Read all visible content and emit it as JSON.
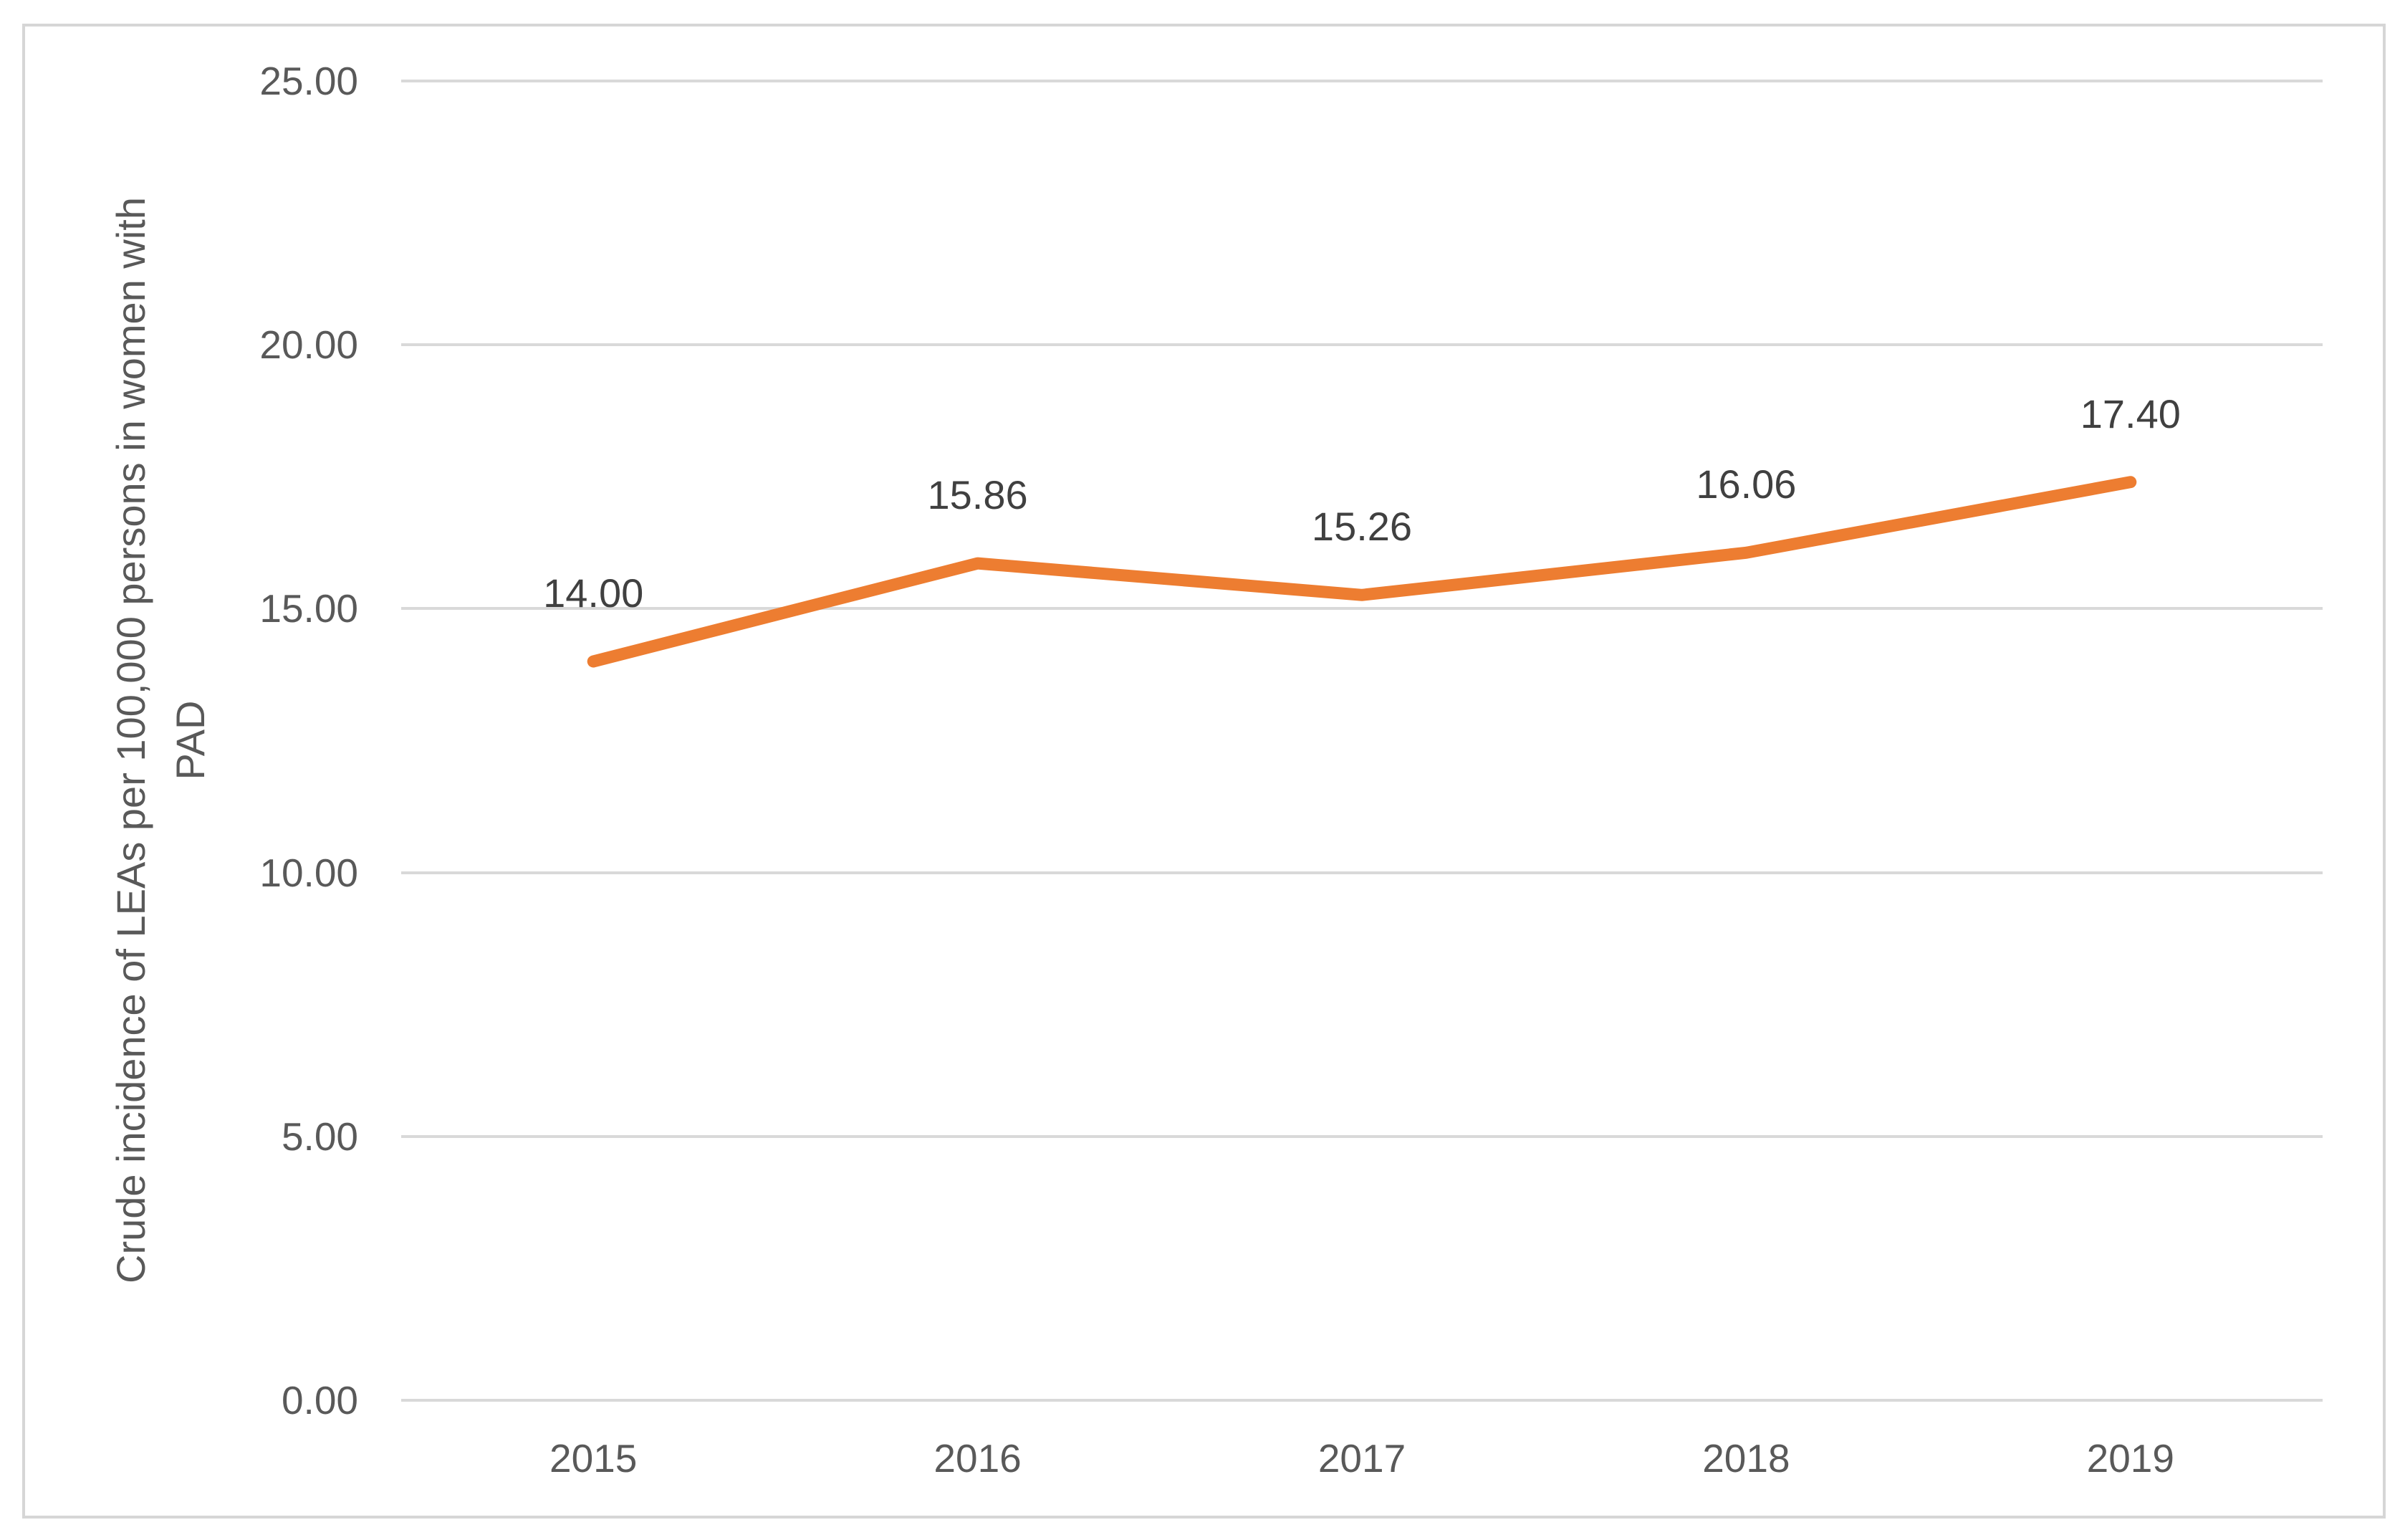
{
  "chart_data": {
    "type": "line",
    "title": "",
    "ylabel_line1": "Crude incidence of LEAs per 100,000 persons in women with",
    "ylabel_line2": "PAD",
    "xlabel": "",
    "categories": [
      "2015",
      "2016",
      "2017",
      "2018",
      "2019"
    ],
    "series": [
      {
        "name": "Crude incidence of LEAs per 100,000 persons in women with PAD",
        "values": [
          14.0,
          15.86,
          15.26,
          16.06,
          17.4
        ]
      }
    ],
    "data_labels": [
      "14.00",
      "15.86",
      "15.26",
      "16.06",
      "17.40"
    ],
    "y_ticks": [
      "25.00",
      "20.00",
      "15.00",
      "10.00",
      "5.00",
      "0.00"
    ],
    "ylim": [
      0,
      25
    ],
    "grid": "horizontal-gridlines-on",
    "legend": "none",
    "line_color": "#ED7D31",
    "gridline_color": "#D9D9D9",
    "border_color": "#D6D6D6",
    "tick_text_color": "#595959",
    "data_label_color": "#404040"
  }
}
